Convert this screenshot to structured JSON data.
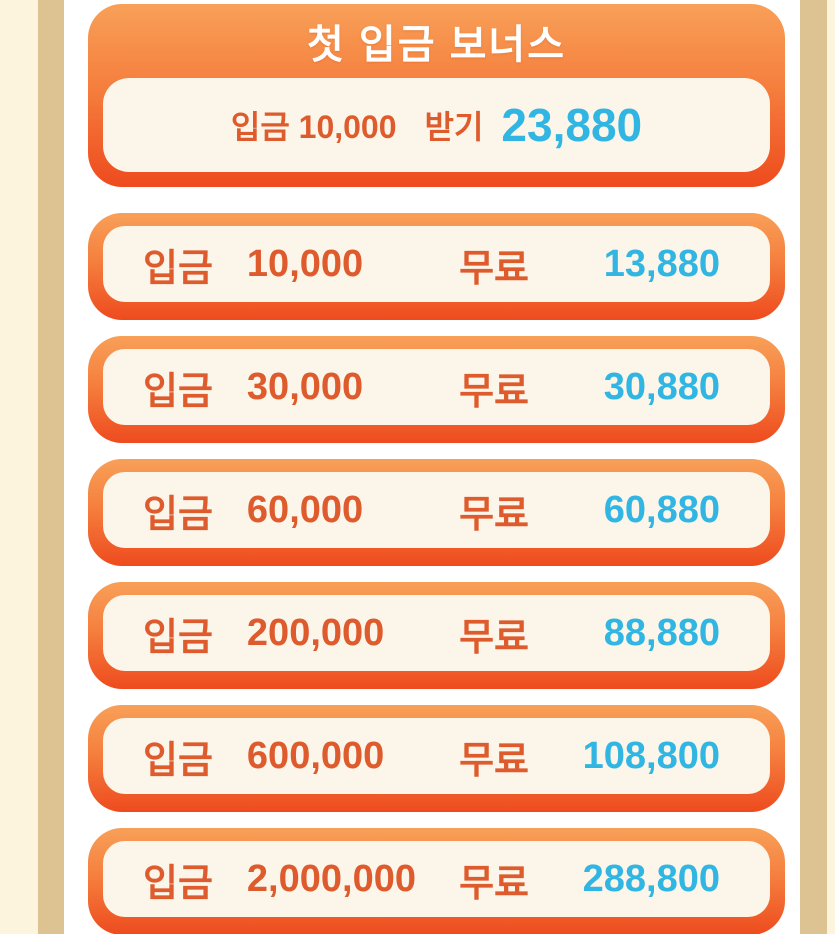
{
  "colors": {
    "card_gradient_top": "#F8A058",
    "card_gradient_bottom": "#EE4B1E",
    "card_inner_fill": "#FBF6E9",
    "deposit_text": "#DE5B2E",
    "bonus_text": "#31B6E4",
    "frame_tan": "#DDC392",
    "frame_pale": "#FCF4DC",
    "title_text": "#FFFFFF"
  },
  "header": {
    "title": "첫 입금 보너스",
    "row": {
      "deposit_text": "입금 10,000",
      "action_label": "받기",
      "bonus_amount": "23,880"
    }
  },
  "labels": {
    "deposit": "입금",
    "free": "무료"
  },
  "tiers": [
    {
      "deposit_label": "입금",
      "deposit_amount": "10,000",
      "free_label": "무료",
      "bonus_amount": "13,880"
    },
    {
      "deposit_label": "입금",
      "deposit_amount": "30,000",
      "free_label": "무료",
      "bonus_amount": "30,880"
    },
    {
      "deposit_label": "입금",
      "deposit_amount": "60,000",
      "free_label": "무료",
      "bonus_amount": "60,880"
    },
    {
      "deposit_label": "입금",
      "deposit_amount": "200,000",
      "free_label": "무료",
      "bonus_amount": "88,880"
    },
    {
      "deposit_label": "입금",
      "deposit_amount": "600,000",
      "free_label": "무료",
      "bonus_amount": "108,800"
    },
    {
      "deposit_label": "입금",
      "deposit_amount": "2,000,000",
      "free_label": "무료",
      "bonus_amount": "288,800"
    }
  ]
}
